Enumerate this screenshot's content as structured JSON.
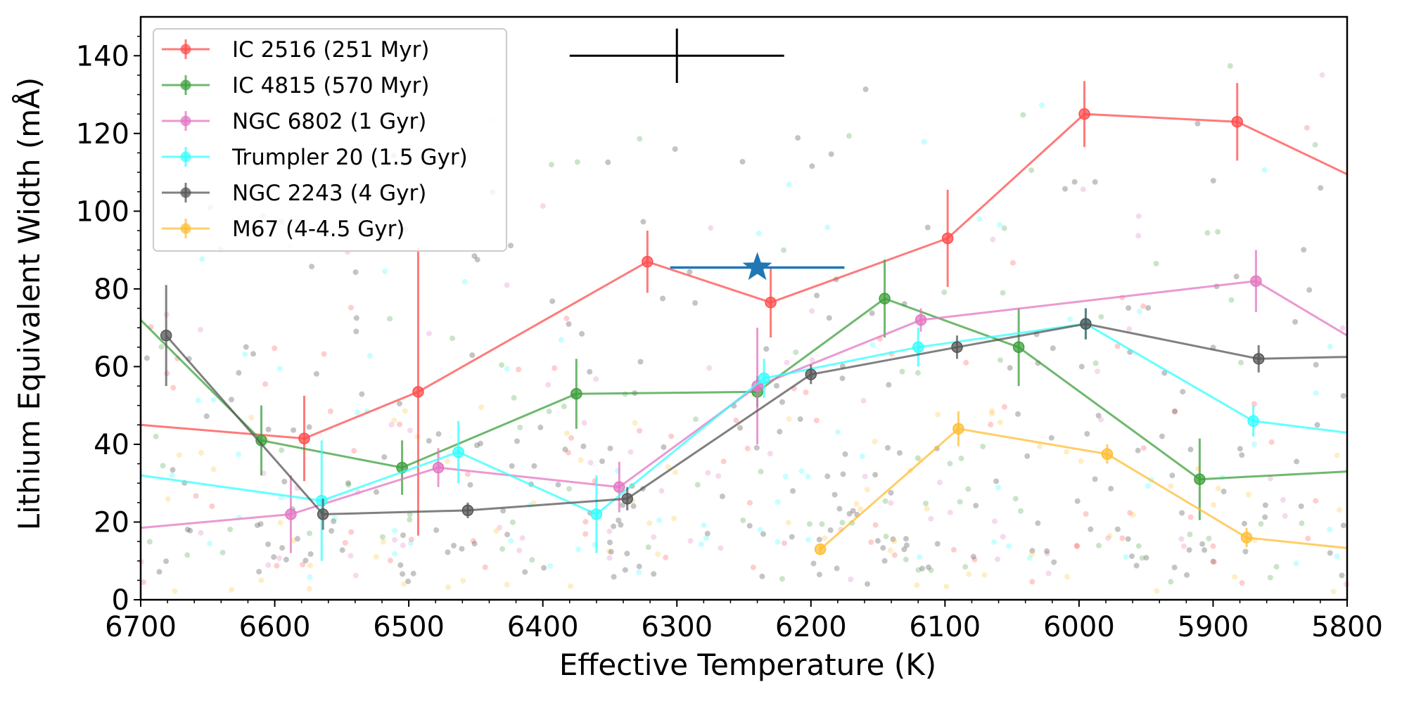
{
  "chart_data": {
    "type": "line",
    "xlabel": "Effective Temperature (K)",
    "ylabel": "Lithium Equivalent Width (mÅ)",
    "xlim": [
      6700,
      5800
    ],
    "ylim": [
      0,
      150
    ],
    "x_ticks": [
      6700,
      6600,
      6500,
      6400,
      6300,
      6200,
      6100,
      6000,
      5900,
      5800
    ],
    "x_tick_labels": [
      "6700",
      "6600",
      "6500",
      "6400",
      "6300",
      "6200",
      "6100",
      "6000",
      "5900",
      "5800"
    ],
    "y_ticks": [
      0,
      20,
      40,
      60,
      80,
      100,
      120,
      140
    ],
    "y_tick_labels": [
      "0",
      "20",
      "40",
      "60",
      "80",
      "100",
      "120",
      "140"
    ],
    "legend_position": "upper-left",
    "series": [
      {
        "name": "IC 2516 (251 Myr)",
        "color": "#ff4d4d",
        "x": [
          6700,
          6578,
          6493,
          6322,
          6230,
          6098,
          5996,
          5882,
          5800
        ],
        "y": [
          45,
          41.5,
          53.5,
          87,
          76.5,
          93,
          125,
          123,
          109.5
        ],
        "yerr": [
          7,
          11,
          37,
          8,
          9,
          12.5,
          8.5,
          10,
          0
        ]
      },
      {
        "name": "IC 4815 (570 Myr)",
        "color": "#3da03d",
        "x": [
          6700,
          6610,
          6505,
          6375,
          6240,
          6145,
          6045,
          5910,
          5800
        ],
        "y": [
          72,
          41,
          34,
          53,
          53.5,
          77.5,
          65,
          31,
          33
        ],
        "yerr": [
          0,
          9,
          7,
          9,
          4,
          10,
          10,
          10.5,
          0
        ]
      },
      {
        "name": "NGC 6802 (1 Gyr)",
        "color": "#e377c2",
        "x": [
          6700,
          6588,
          6478,
          6343,
          6240,
          6118,
          5868,
          5800
        ],
        "y": [
          18.5,
          22,
          34,
          29,
          55,
          72,
          82,
          68
        ],
        "yerr": [
          0,
          10,
          5,
          6.5,
          15,
          3,
          8,
          0
        ]
      },
      {
        "name": "Trumpler 20 (1.5 Gyr)",
        "color": "#33ffff",
        "x": [
          6700,
          6565,
          6463,
          6360,
          6235,
          6120,
          5995,
          5870,
          5800
        ],
        "y": [
          32,
          25.5,
          38,
          22,
          57,
          65,
          71,
          46,
          43
        ],
        "yerr": [
          0,
          15.5,
          8,
          10,
          5,
          5,
          4,
          4,
          0
        ]
      },
      {
        "name": "NGC 2243 (4 Gyr)",
        "color": "#555555",
        "x": [
          6681,
          6564,
          6456,
          6337,
          6200,
          6091,
          5995,
          5866,
          5800
        ],
        "y": [
          68,
          22,
          23,
          26,
          58,
          65,
          71,
          62,
          62.5
        ],
        "yerr": [
          13,
          4,
          2,
          3,
          2.5,
          3,
          4,
          3.5,
          0
        ]
      },
      {
        "name": "M67 (4-4.5 Gyr)",
        "color": "#ffbe33",
        "x": [
          6193,
          6090,
          5979,
          5875,
          5800
        ],
        "y": [
          13,
          44,
          37.5,
          16,
          13.3
        ],
        "yerr": [
          1,
          4.5,
          2.5,
          2.5,
          0
        ]
      }
    ],
    "star": {
      "name": "target star",
      "color": "#1f77b4",
      "x": 6240,
      "y": 85.5,
      "xerr": 65
    },
    "typical_error_cross": {
      "color": "#000000",
      "x": 6300,
      "y": 140,
      "xerr": 80,
      "yerr": 7
    }
  }
}
